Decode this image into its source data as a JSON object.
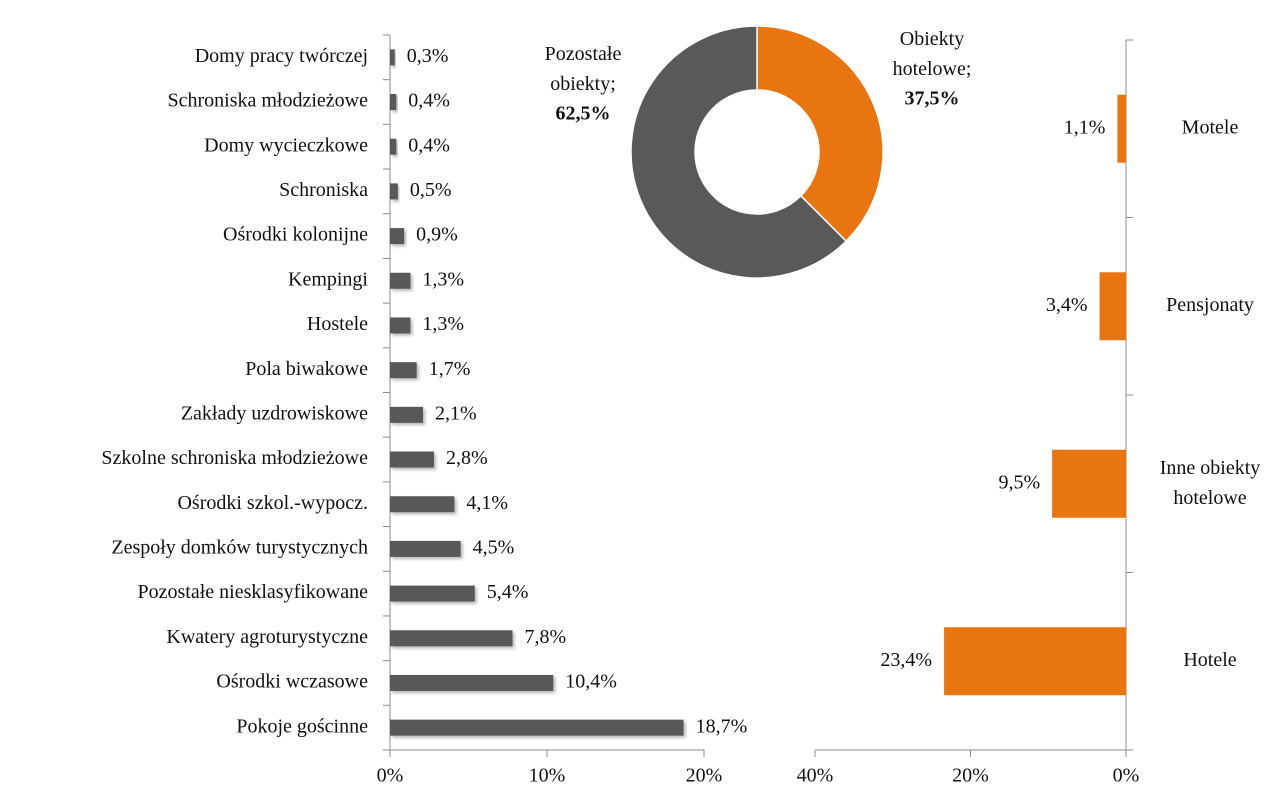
{
  "chart_data": [
    {
      "type": "hbar",
      "categories": [
        "Domy pracy twórczej",
        "Schroniska młodzieżowe",
        "Domy wycieczkowe",
        "Schroniska",
        "Ośrodki kolonijne",
        "Kempingi",
        "Hostele",
        "Pola biwakowe",
        "Zakłady uzdrowiskowe",
        "Szkolne schroniska młodzieżowe",
        "Ośrodki szkol.-wypocz.",
        "Zespoły domków turystycznych",
        "Pozostałe niesklasyfikowane",
        "Kwatery agroturystyczne",
        "Ośrodki wczasowe",
        "Pokoje gościnne"
      ],
      "values": [
        0.3,
        0.4,
        0.4,
        0.5,
        0.9,
        1.3,
        1.3,
        1.7,
        2.1,
        2.8,
        4.1,
        4.5,
        5.4,
        7.8,
        10.4,
        18.7
      ],
      "value_labels": [
        "0,3%",
        "0,4%",
        "0,4%",
        "0,5%",
        "0,9%",
        "1,3%",
        "1,3%",
        "1,7%",
        "2,1%",
        "2,8%",
        "4,1%",
        "4,5%",
        "5,4%",
        "7,8%",
        "10,4%",
        "18,7%"
      ],
      "color": "#595959",
      "xlim": [
        0,
        20
      ],
      "xticks": [
        {
          "value": 0,
          "label": "0%"
        },
        {
          "value": 10,
          "label": "10%"
        },
        {
          "value": 20,
          "label": "20%"
        }
      ]
    },
    {
      "type": "donut",
      "categories": [
        "Obiekty hotelowe;",
        "Pozostałe obiekty;"
      ],
      "values": [
        37.5,
        62.5
      ],
      "value_labels": [
        "37,5%",
        "62,5%"
      ],
      "colors": [
        "#e8750f",
        "#595959"
      ]
    },
    {
      "type": "hbar",
      "categories": [
        "Motele",
        "Pensjonaty",
        "Inne obiekty hotelowe",
        "Hotele"
      ],
      "values": [
        1.1,
        3.4,
        9.5,
        23.4
      ],
      "value_labels": [
        "1,1%",
        "3,4%",
        "9,5%",
        "23,4%"
      ],
      "color": "#e8750f",
      "xlim": [
        40,
        0
      ],
      "xticks": [
        {
          "value": 40,
          "label": "40%"
        },
        {
          "value": 20,
          "label": "20%"
        },
        {
          "value": 0,
          "label": "0%"
        }
      ]
    }
  ]
}
